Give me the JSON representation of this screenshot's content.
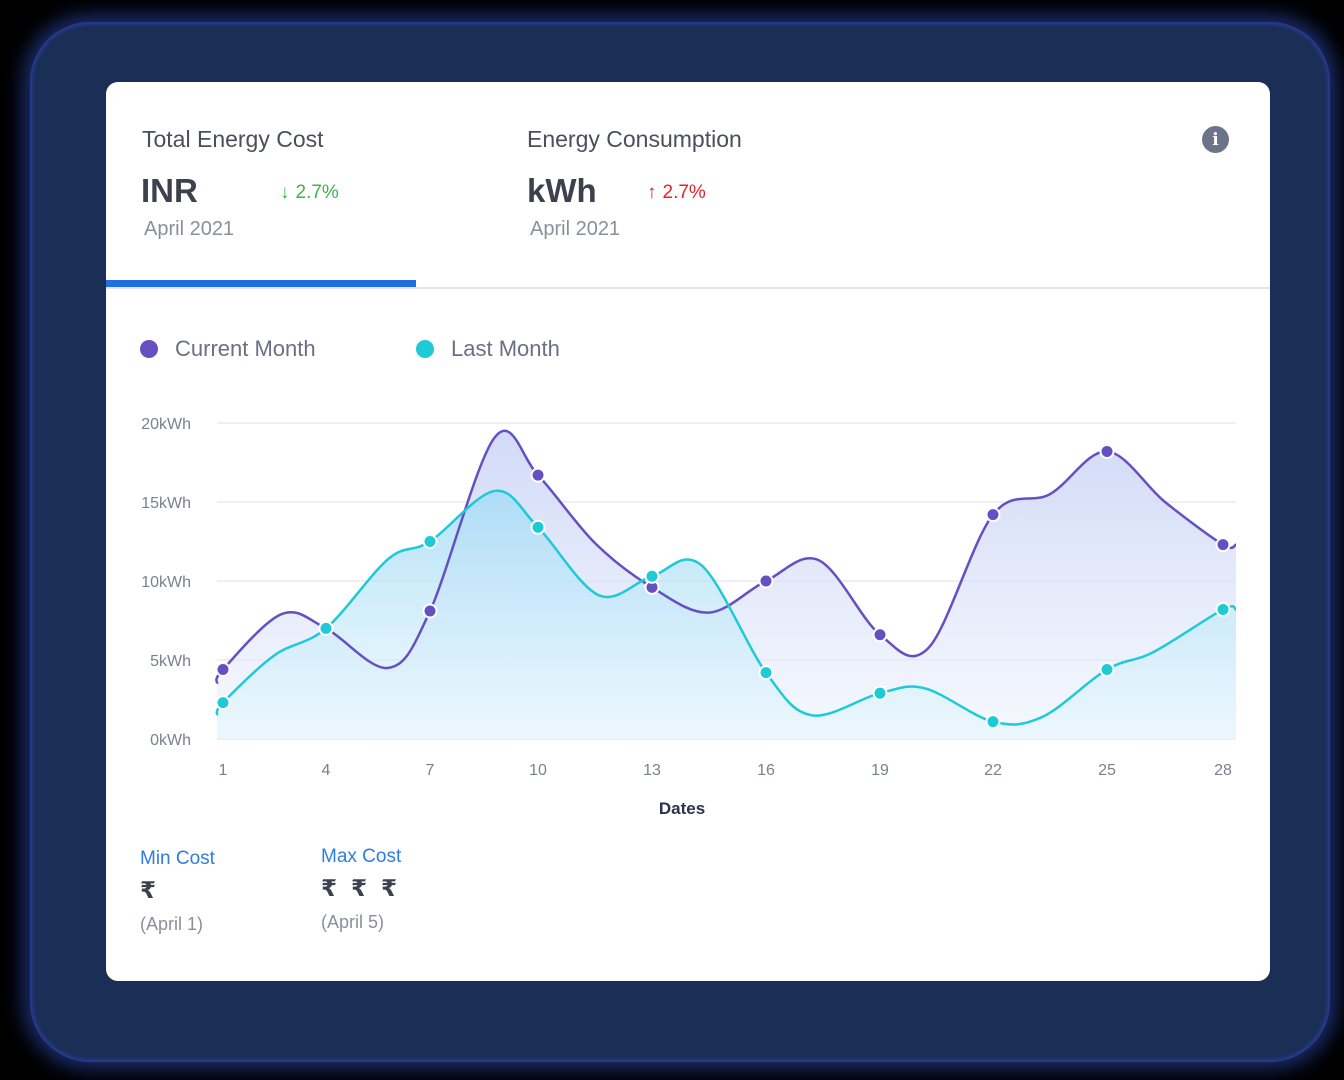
{
  "tabs": [
    {
      "title": "Total Energy Cost",
      "unit": "INR",
      "delta_direction": "down",
      "delta_arrow": "↓",
      "delta_value": "2.7%",
      "delta_color": "#3cb54a",
      "period": "April 2021",
      "active": true
    },
    {
      "title": "Energy Consumption",
      "unit": "kWh",
      "delta_direction": "up",
      "delta_arrow": "↑",
      "delta_value": "2.7%",
      "delta_color": "#e8202f",
      "period": "April 2021",
      "active": false
    }
  ],
  "info_icon": "i",
  "colors": {
    "accent": "#1f6fe0",
    "current_month": "#6550c2",
    "last_month": "#1ecad6",
    "gridline": "#e8eaee"
  },
  "legend": [
    {
      "label": "Current Month",
      "color": "#6550c2"
    },
    {
      "label": "Last Month",
      "color": "#1ecad6"
    }
  ],
  "stats": [
    {
      "label": "Min Cost",
      "value": "₹",
      "date": "(April 1)"
    },
    {
      "label": "Max Cost",
      "value": "₹ ₹ ₹",
      "date": "(April 5)"
    }
  ],
  "chart_data": {
    "type": "area",
    "title": "",
    "xlabel": "Dates",
    "ylabel": "",
    "x": [
      1,
      4,
      7,
      10,
      13,
      16,
      19,
      22,
      25,
      28
    ],
    "x_tick_labels": [
      "1",
      "4",
      "7",
      "10",
      "13",
      "16",
      "19",
      "22",
      "25",
      "28"
    ],
    "y_tick_labels": [
      "0kWh",
      "5kWh",
      "10kWh",
      "15kWh",
      "20kWh"
    ],
    "y_ticks": [
      0,
      5,
      10,
      15,
      20
    ],
    "ylim": [
      0,
      20
    ],
    "grid": true,
    "legend_position": "top-left",
    "series": [
      {
        "name": "Current Month",
        "color": "#6550c2",
        "values": [
          4.4,
          7.0,
          8.1,
          16.7,
          9.6,
          10.0,
          6.6,
          14.2,
          18.2,
          12.3
        ]
      },
      {
        "name": "Last Month",
        "color": "#1ecad6",
        "values": [
          2.3,
          7.0,
          12.5,
          13.4,
          10.3,
          4.2,
          2.9,
          1.1,
          4.4,
          8.2
        ]
      }
    ],
    "curve_detail": {
      "Current Month": [
        [
          0.75,
          3.5
        ],
        [
          1,
          4.4
        ],
        [
          2.7,
          7.9
        ],
        [
          4,
          7.0
        ],
        [
          5.8,
          4.5
        ],
        [
          7,
          8.1
        ],
        [
          8.8,
          19.1
        ],
        [
          10,
          16.7
        ],
        [
          11.5,
          12.4
        ],
        [
          13,
          9.6
        ],
        [
          14.5,
          8.0
        ],
        [
          16,
          10.0
        ],
        [
          17.4,
          11.3
        ],
        [
          19,
          6.6
        ],
        [
          20.3,
          5.8
        ],
        [
          22,
          14.2
        ],
        [
          23.5,
          15.5
        ],
        [
          25,
          18.2
        ],
        [
          26.5,
          15.0
        ],
        [
          28,
          12.3
        ],
        [
          28.35,
          12.3
        ]
      ],
      "Last Month": [
        [
          0.75,
          1.5
        ],
        [
          1,
          2.3
        ],
        [
          2.5,
          5.3
        ],
        [
          4,
          7.0
        ],
        [
          5.8,
          11.4
        ],
        [
          7,
          12.5
        ],
        [
          8.8,
          15.7
        ],
        [
          10,
          13.4
        ],
        [
          11.6,
          9.1
        ],
        [
          13,
          10.3
        ],
        [
          14.3,
          11.0
        ],
        [
          16,
          4.2
        ],
        [
          17.2,
          1.5
        ],
        [
          19,
          2.9
        ],
        [
          20.2,
          3.2
        ],
        [
          22,
          1.1
        ],
        [
          23.3,
          1.4
        ],
        [
          25,
          4.4
        ],
        [
          26.2,
          5.5
        ],
        [
          28,
          8.2
        ],
        [
          28.35,
          8.2
        ]
      ]
    }
  }
}
